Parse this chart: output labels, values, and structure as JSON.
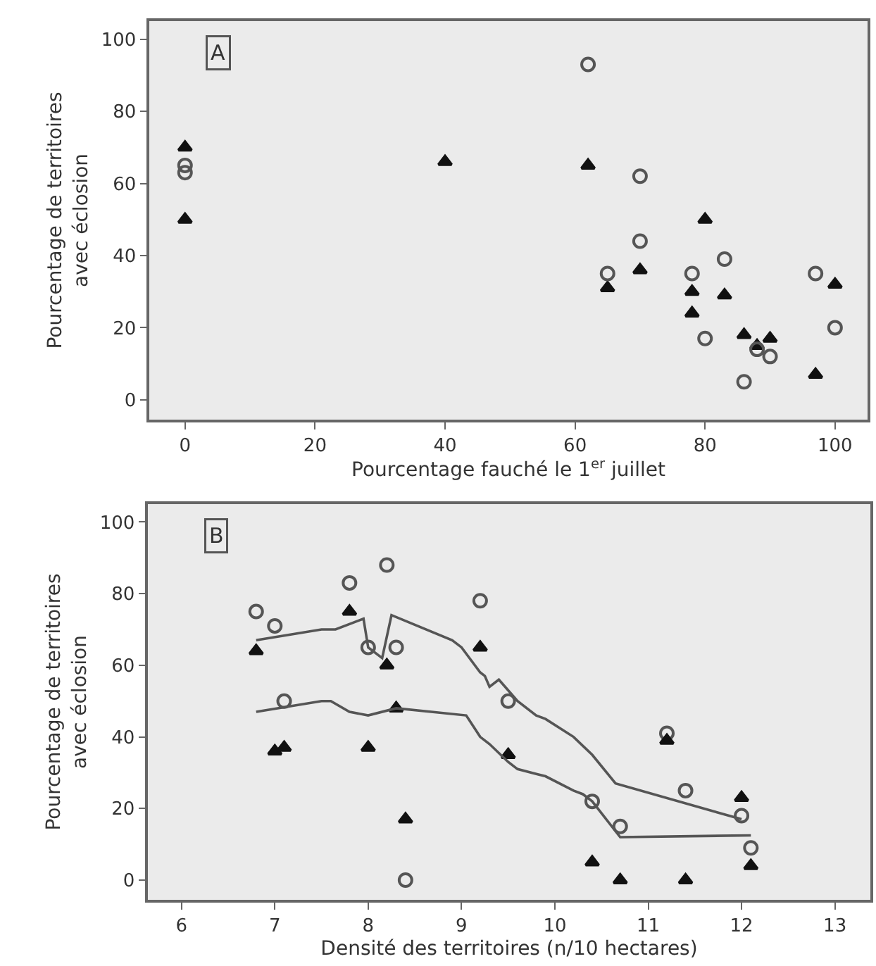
{
  "chart_data": [
    {
      "type": "scatter",
      "xlabel": "Pourcentage fauché le 1$^{er}$ juillet",
      "ylabel": "Pourcentage de territoires\navec éclosion",
      "annotations": [
        "A"
      ],
      "xlim": [
        -5.5,
        105
      ],
      "xticks": [
        0,
        20,
        40,
        60,
        80,
        100
      ],
      "ylim": [
        -5.5,
        105
      ],
      "yticks": [
        0,
        20,
        40,
        60,
        80,
        100
      ],
      "grid": false,
      "series": [
        {
          "marker": "triangle",
          "color": "#111111",
          "x": [
            0,
            0,
            40,
            62,
            65,
            70,
            78,
            78,
            80,
            83,
            86,
            88,
            90,
            97,
            100
          ],
          "values": [
            70,
            50,
            66,
            65,
            31,
            36,
            30,
            24,
            50,
            29,
            18,
            15,
            17,
            7,
            32
          ]
        },
        {
          "marker": "circle",
          "color": "#555555",
          "x": [
            0,
            0,
            62,
            65,
            70,
            70,
            78,
            80,
            83,
            86,
            88,
            90,
            97,
            100
          ],
          "values": [
            65,
            63,
            93,
            35,
            62,
            44,
            35,
            17,
            39,
            5,
            14,
            12,
            35,
            20
          ]
        }
      ]
    },
    {
      "type": "scatter",
      "xlabel": "Densité des territoires (n/10 hectares)",
      "ylabel": "Pourcentage de territoires\navec éclosion",
      "annotations": [
        "B"
      ],
      "xlim": [
        5.64,
        13.38
      ],
      "xticks": [
        6,
        7,
        8,
        9,
        10,
        11,
        12,
        13
      ],
      "ylim": [
        -5.5,
        105
      ],
      "yticks": [
        0,
        20,
        40,
        60,
        80,
        100
      ],
      "grid": false,
      "series": [
        {
          "marker": "circle",
          "color": "#555555",
          "x": [
            6.8,
            7.0,
            7.1,
            7.8,
            8.0,
            8.2,
            8.3,
            8.4,
            9.2,
            9.5,
            10.4,
            10.7,
            11.2,
            11.4,
            12.0,
            12.1
          ],
          "values": [
            75,
            71,
            50,
            83,
            65,
            88,
            65,
            0,
            78,
            50,
            22,
            15,
            41,
            25,
            18,
            9
          ]
        },
        {
          "marker": "triangle",
          "color": "#111111",
          "x": [
            6.8,
            7.0,
            7.1,
            7.8,
            8.0,
            8.2,
            8.3,
            8.4,
            9.2,
            9.5,
            10.4,
            10.7,
            11.2,
            11.4,
            12.0,
            12.1
          ],
          "values": [
            64,
            36,
            37,
            75,
            37,
            60,
            48,
            17,
            65,
            35,
            5,
            0,
            39,
            0,
            23,
            4
          ]
        },
        {
          "type": "line",
          "color": "#555555",
          "x": [
            6.8,
            7.5,
            7.65,
            7.95,
            8.0,
            8.1,
            8.15,
            8.25,
            8.9,
            9.0,
            9.2,
            9.25,
            9.3,
            9.4,
            9.6,
            9.8,
            9.9,
            10.2,
            10.4,
            10.65,
            12.0
          ],
          "values": [
            67,
            70,
            70,
            73,
            65,
            63,
            62,
            74,
            67,
            65,
            58,
            57,
            54,
            56,
            50,
            46,
            45,
            40,
            35,
            27,
            17
          ]
        },
        {
          "type": "line",
          "color": "#555555",
          "x": [
            6.8,
            7.5,
            7.6,
            7.8,
            8.0,
            8.3,
            9.05,
            9.2,
            9.3,
            9.5,
            9.6,
            9.9,
            10.2,
            10.3,
            10.4,
            10.7,
            12.1
          ],
          "values": [
            47,
            50,
            50,
            47,
            46,
            48,
            46,
            40,
            38,
            33,
            31,
            29,
            25,
            24,
            22,
            12,
            12.5
          ]
        }
      ]
    }
  ]
}
